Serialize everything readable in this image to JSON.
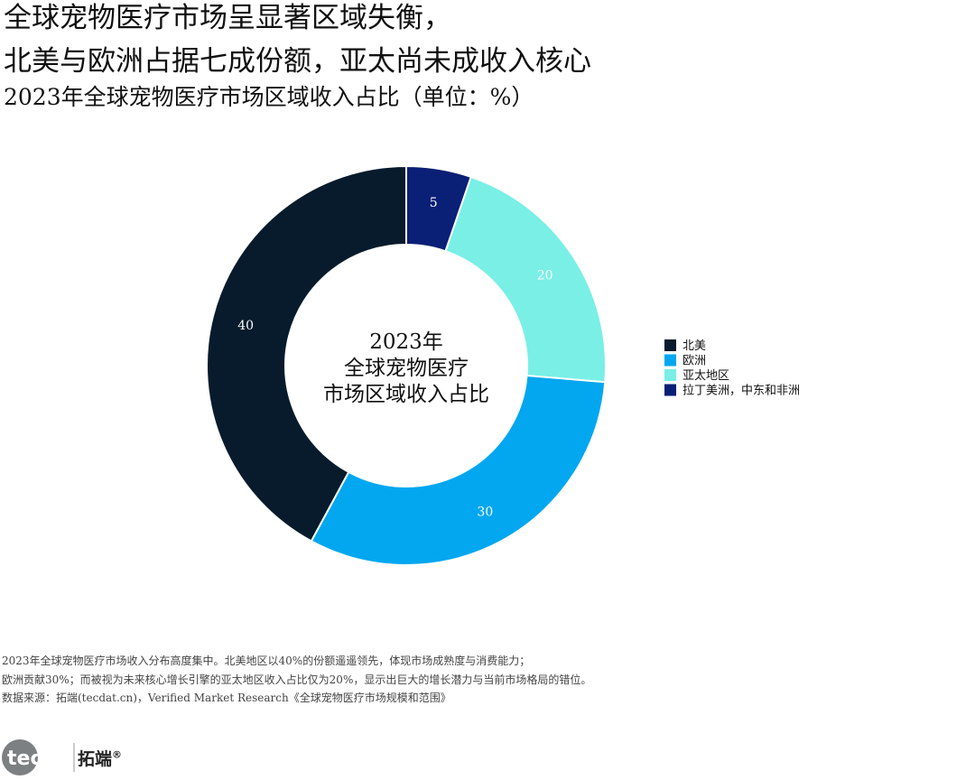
{
  "title_line1": "全球宠物医疗市场呈显著区域失衡，",
  "title_line2": "北美与欧洲占据七成份额，亚太尚未成收入核心",
  "subtitle": "2023年全球宠物医疗市场区域收入占比（单位：%）",
  "chart_data": {
    "type": "pie",
    "center_label": [
      "2023年",
      "全球宠物医疗",
      "市场区域收入占比"
    ],
    "categories": [
      "北美",
      "欧洲",
      "亚太地区",
      "拉丁美洲，中东和非洲"
    ],
    "values": [
      40,
      30,
      20,
      5
    ],
    "colors": [
      "#071b2c",
      "#02a7f0",
      "#79efe6",
      "#0a1f76"
    ],
    "label_colors": [
      "#ffffff",
      "#ffffff",
      "#ffffff",
      "#ffffff"
    ],
    "legend_position": "right"
  },
  "footnotes": {
    "line1": "2023年全球宠物医疗市场收入分布高度集中。北美地区以40%的份额遥遥领先，体现市场成熟度与消费能力；",
    "line2": "欧洲贡献30%；而被视为未来核心增长引擎的亚太地区收入占比仅为20%，显示出巨大的增长潜力与当前市场格局的错位。",
    "line3": "数据来源：拓端(tecdat.cn)，Verified Market Research《全球宠物医疗市场规模和范围》"
  },
  "logo": {
    "word": "tecdat",
    "brand": "拓端",
    "mark": "®"
  }
}
